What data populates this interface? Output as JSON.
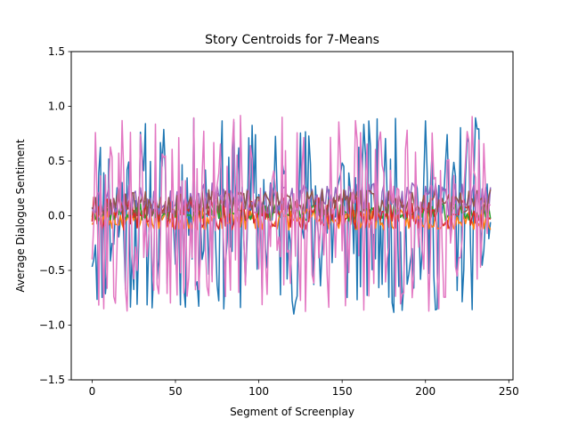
{
  "chart_data": {
    "type": "line",
    "title": "Story Centroids for 7-Means",
    "xlabel": "Segment of Screenplay",
    "ylabel": "Average Dialogue Sentiment",
    "xlim": [
      -12.5,
      252.5
    ],
    "ylim": [
      -1.5,
      1.5
    ],
    "xticks": [
      0,
      50,
      100,
      150,
      200,
      250
    ],
    "yticks": [
      -1.5,
      -1.0,
      -0.5,
      0.0,
      0.5,
      1.0,
      1.5
    ],
    "xtick_labels": [
      "0",
      "50",
      "100",
      "150",
      "200",
      "250"
    ],
    "ytick_labels": [
      "−1.5",
      "−1.0",
      "−0.5",
      "0.0",
      "0.5",
      "1.0",
      "1.5"
    ],
    "grid": false,
    "n_segments": 240,
    "series": [
      {
        "color": "#1f77b4",
        "amplitude": 0.9,
        "offset": 0.0,
        "seed": 11
      },
      {
        "color": "#ff7f0e",
        "amplitude": 0.1,
        "offset": -0.03,
        "seed": 23
      },
      {
        "color": "#2ca02c",
        "amplitude": 0.08,
        "offset": 0.03,
        "seed": 37
      },
      {
        "color": "#d62728",
        "amplitude": 0.15,
        "offset": 0.02,
        "seed": 41
      },
      {
        "color": "#9467bd",
        "amplitude": 0.15,
        "offset": 0.15,
        "seed": 53
      },
      {
        "color": "#8c564b",
        "amplitude": 0.12,
        "offset": 0.12,
        "seed": 67
      },
      {
        "color": "#e377c2",
        "amplitude": 0.9,
        "offset": 0.02,
        "seed": 79
      }
    ]
  }
}
